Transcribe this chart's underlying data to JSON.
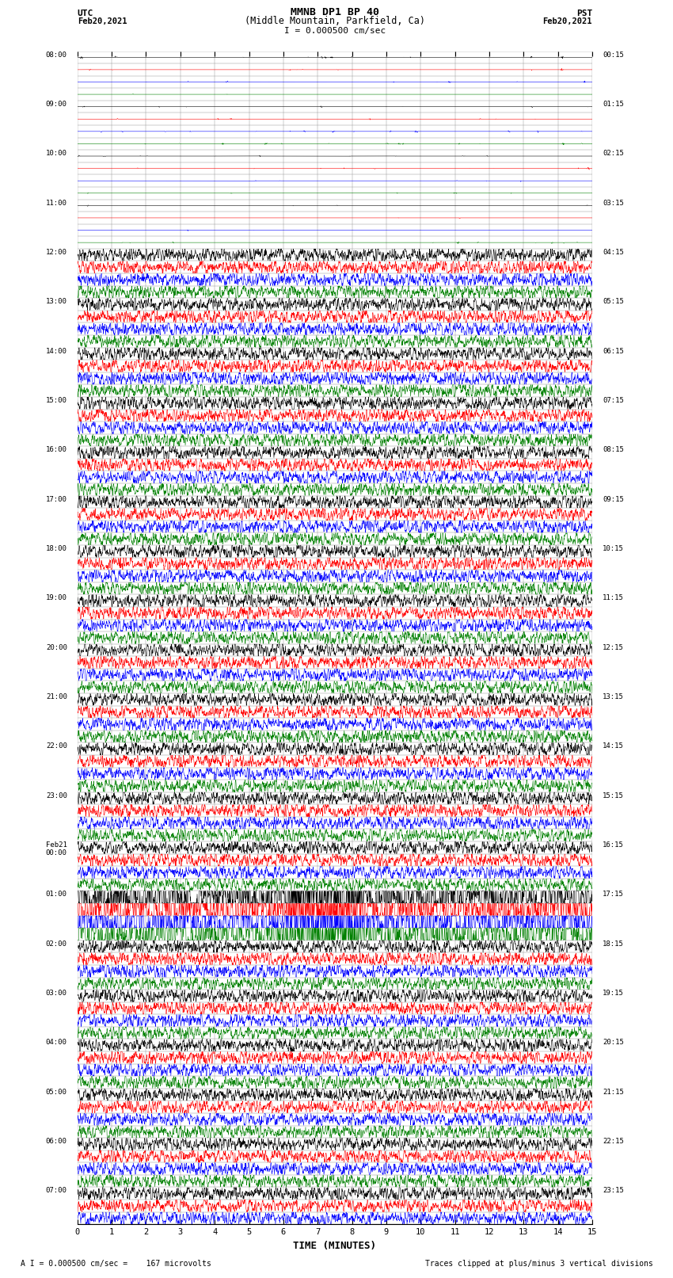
{
  "title_line1": "MMNB DP1 BP 40",
  "title_line2": "(Middle Mountain, Parkfield, Ca)",
  "scale_text": "I = 0.000500 cm/sec",
  "xlabel": "TIME (MINUTES)",
  "footer_left": "A I = 0.000500 cm/sec =    167 microvolts",
  "footer_right": "Traces clipped at plus/minus 3 vertical divisions",
  "x_ticks": [
    0,
    1,
    2,
    3,
    4,
    5,
    6,
    7,
    8,
    9,
    10,
    11,
    12,
    13,
    14,
    15
  ],
  "background_color": "#ffffff",
  "grid_color": "#999999",
  "trace_colors": [
    "black",
    "red",
    "blue",
    "green"
  ],
  "figsize": [
    8.5,
    16.13
  ],
  "dpi": 100,
  "left_times_utc": [
    "08:00",
    "",
    "",
    "",
    "09:00",
    "",
    "",
    "",
    "10:00",
    "",
    "",
    "",
    "11:00",
    "",
    "",
    "",
    "12:00",
    "",
    "",
    "",
    "13:00",
    "",
    "",
    "",
    "14:00",
    "",
    "",
    "",
    "15:00",
    "",
    "",
    "",
    "16:00",
    "",
    "",
    "",
    "17:00",
    "",
    "",
    "",
    "18:00",
    "",
    "",
    "",
    "19:00",
    "",
    "",
    "",
    "20:00",
    "",
    "",
    "",
    "21:00",
    "",
    "",
    "",
    "22:00",
    "",
    "",
    "",
    "23:00",
    "",
    "",
    "",
    "Feb21\n00:00",
    "",
    "",
    "",
    "01:00",
    "",
    "",
    "",
    "02:00",
    "",
    "",
    "",
    "03:00",
    "",
    "",
    "",
    "04:00",
    "",
    "",
    "",
    "05:00",
    "",
    "",
    "",
    "06:00",
    "",
    "",
    "",
    "07:00",
    "",
    ""
  ],
  "right_times_pst": [
    "00:15",
    "",
    "",
    "",
    "01:15",
    "",
    "",
    "",
    "02:15",
    "",
    "",
    "",
    "03:15",
    "",
    "",
    "",
    "04:15",
    "",
    "",
    "",
    "05:15",
    "",
    "",
    "",
    "06:15",
    "",
    "",
    "",
    "07:15",
    "",
    "",
    "",
    "08:15",
    "",
    "",
    "",
    "09:15",
    "",
    "",
    "",
    "10:15",
    "",
    "",
    "",
    "11:15",
    "",
    "",
    "",
    "12:15",
    "",
    "",
    "",
    "13:15",
    "",
    "",
    "",
    "14:15",
    "",
    "",
    "",
    "15:15",
    "",
    "",
    "",
    "16:15",
    "",
    "",
    "",
    "17:15",
    "",
    "",
    "",
    "18:15",
    "",
    "",
    "",
    "19:15",
    "",
    "",
    "",
    "20:15",
    "",
    "",
    "",
    "21:15",
    "",
    "",
    "",
    "22:15",
    "",
    "",
    "",
    "23:15",
    "",
    ""
  ],
  "num_rows": 95,
  "num_quiet_rows": 16,
  "seed": 42
}
